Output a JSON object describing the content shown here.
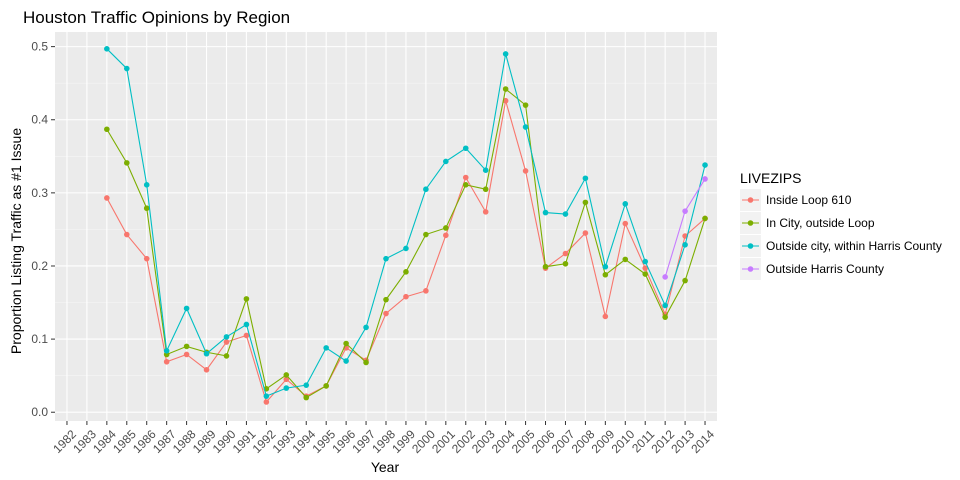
{
  "chart_data": {
    "type": "line",
    "title": "Houston Traffic Opinions by Region",
    "xlabel": "Year",
    "ylabel": "Proportion Listing Traffic as #1 Issue",
    "x": [
      "1982",
      "1983",
      "1984",
      "1985",
      "1986",
      "1987",
      "1988",
      "1989",
      "1990",
      "1991",
      "1992",
      "1993",
      "1994",
      "1995",
      "1996",
      "1997",
      "1998",
      "1999",
      "2000",
      "2001",
      "2002",
      "2003",
      "2004",
      "2005",
      "2006",
      "2007",
      "2008",
      "2009",
      "2010",
      "2011",
      "2012",
      "2013",
      "2014"
    ],
    "ylim": [
      -0.012,
      0.52
    ],
    "yticks": [
      0.0,
      0.1,
      0.2,
      0.3,
      0.4,
      0.5
    ],
    "ytick_labels": [
      "0.0",
      "0.1",
      "0.2",
      "0.3",
      "0.4",
      "0.5"
    ],
    "grid": true,
    "legend": {
      "title": "LIVEZIPS",
      "position": "right"
    },
    "series": [
      {
        "name": "Inside Loop 610",
        "color": "#F8766D",
        "values": [
          null,
          null,
          0.293,
          0.243,
          0.21,
          0.069,
          0.079,
          0.058,
          0.096,
          0.105,
          0.014,
          0.045,
          0.022,
          0.036,
          0.088,
          0.071,
          0.135,
          0.158,
          0.166,
          0.242,
          0.321,
          0.274,
          0.426,
          0.33,
          0.197,
          0.217,
          0.245,
          0.131,
          0.258,
          0.197,
          0.134,
          0.241,
          0.265
        ]
      },
      {
        "name": "In City, outside Loop",
        "color": "#7CAE00",
        "values": [
          null,
          null,
          0.387,
          0.341,
          0.279,
          0.079,
          0.09,
          0.082,
          0.077,
          0.155,
          0.032,
          0.051,
          0.02,
          0.036,
          0.094,
          0.068,
          0.154,
          0.192,
          0.243,
          0.252,
          0.311,
          0.305,
          0.442,
          0.42,
          0.199,
          0.203,
          0.287,
          0.188,
          0.209,
          0.189,
          0.13,
          0.18,
          0.265
        ]
      },
      {
        "name": "Outside city, within Harris County",
        "color": "#00BFC4",
        "values": [
          null,
          null,
          0.497,
          0.47,
          0.311,
          0.084,
          0.142,
          0.08,
          0.103,
          0.12,
          0.022,
          0.033,
          0.037,
          0.088,
          0.07,
          0.116,
          0.21,
          0.224,
          0.305,
          0.343,
          0.361,
          0.331,
          0.49,
          0.39,
          0.273,
          0.271,
          0.32,
          0.199,
          0.285,
          0.206,
          0.146,
          0.229,
          0.338
        ]
      },
      {
        "name": "Outside Harris County",
        "color": "#C77CFF",
        "values": [
          null,
          null,
          null,
          null,
          null,
          null,
          null,
          null,
          null,
          null,
          null,
          null,
          null,
          null,
          null,
          null,
          null,
          null,
          null,
          null,
          null,
          null,
          null,
          null,
          null,
          null,
          null,
          null,
          null,
          null,
          0.185,
          0.275,
          0.319
        ]
      }
    ]
  }
}
